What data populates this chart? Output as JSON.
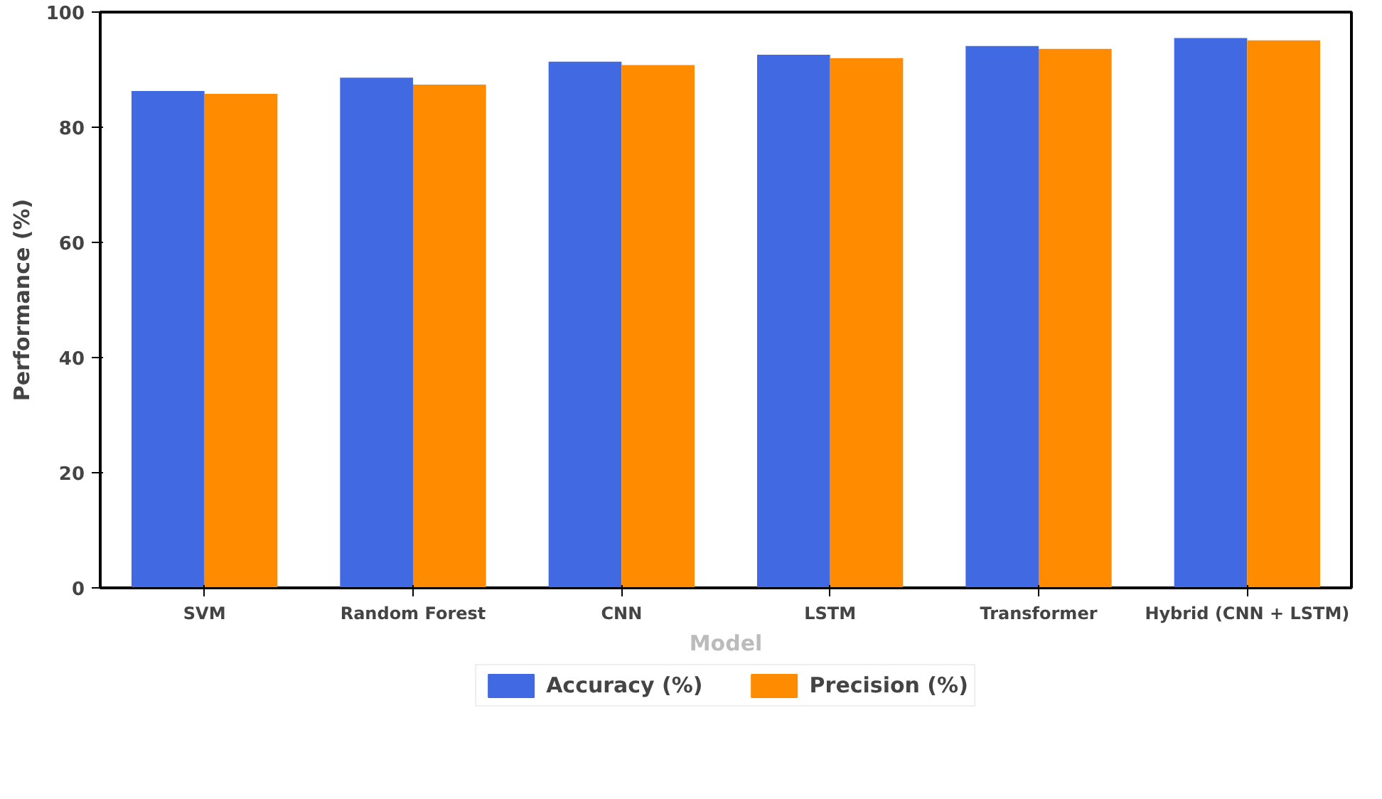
{
  "chart_data": {
    "type": "bar",
    "xlabel": "Model",
    "ylabel": "Performance (%)",
    "categories": [
      "SVM",
      "Random Forest",
      "CNN",
      "LSTM",
      "Transformer",
      "Hybrid (CNN + LSTM)"
    ],
    "series": [
      {
        "name": "Accuracy (%)",
        "color": "#4169e1",
        "values": [
          86.3,
          88.6,
          91.4,
          92.6,
          94.1,
          95.5
        ]
      },
      {
        "name": "Precision (%)",
        "color": "#ff8c00",
        "values": [
          85.8,
          87.4,
          90.8,
          92.0,
          93.6,
          95.1
        ]
      }
    ],
    "ylim": [
      0,
      100
    ],
    "yticks": [
      0,
      20,
      40,
      60,
      80,
      100
    ],
    "grid": false,
    "legend": "bottom"
  }
}
